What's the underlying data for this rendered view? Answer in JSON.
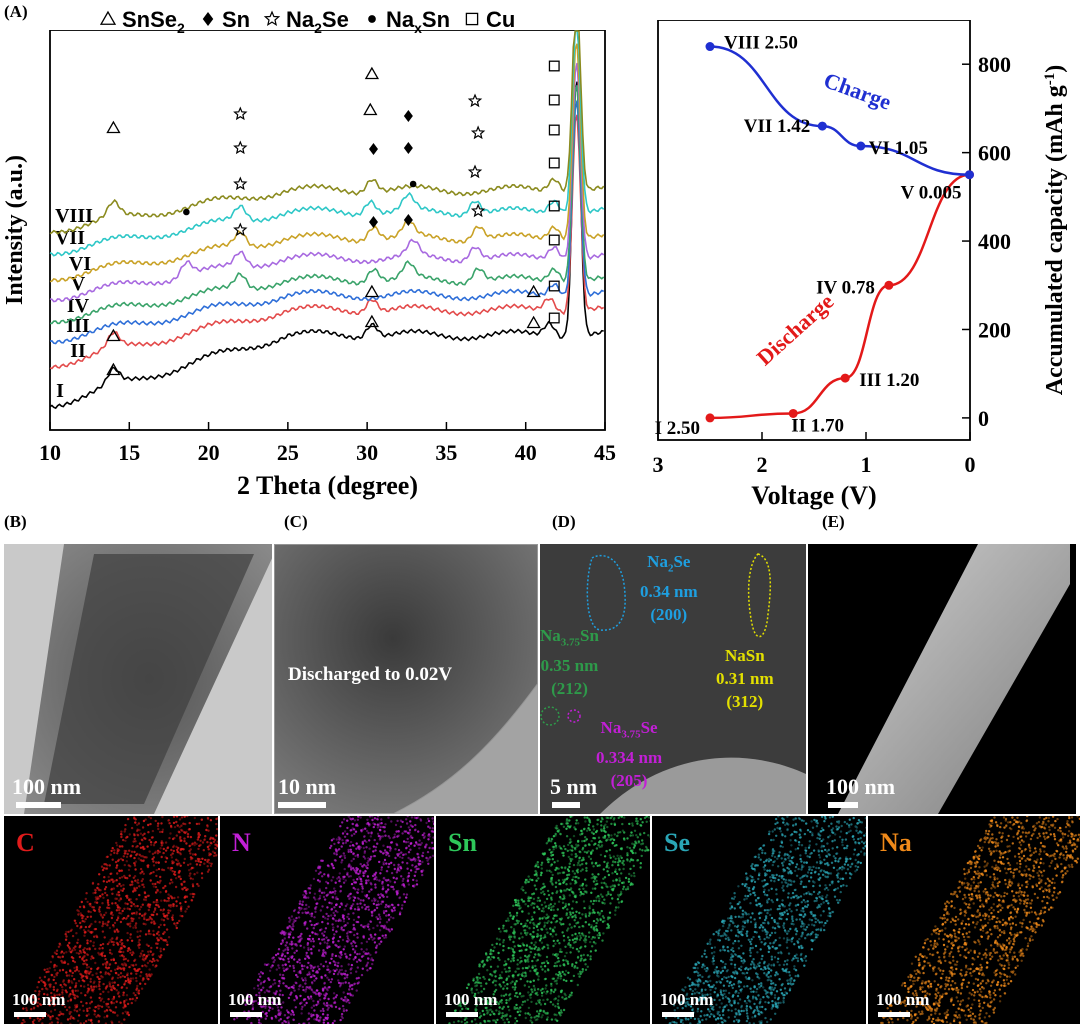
{
  "colors": {
    "I": "#000000",
    "II": "#e34b4b",
    "III": "#e34b4b",
    "IV": "#2f6fd8",
    "V": "#3aa36a",
    "VI": "#a86ae0",
    "VII": "#c9a227",
    "VIII": "#2ec7c7",
    "IX": "#8b8b1f",
    "charge": "#1f2fd1",
    "discharge": "#e31919",
    "C": "#e01b1b",
    "N": "#c21fd6",
    "Sn": "#2ec75a",
    "Se": "#2aa6b6",
    "Na": "#f08a1a",
    "Na2Se": "#1e9fe0",
    "Na375Sn": "#2e9a4a",
    "NaSn": "#e3e000",
    "Na3Se": "#c21fd6"
  },
  "panelA": {
    "label": "(A)",
    "legend": [
      {
        "icon": "triangle-open",
        "text": "SnSe",
        "sub": "2"
      },
      {
        "icon": "diamond-filled",
        "text": "Sn",
        "sub": ""
      },
      {
        "icon": "star-open",
        "text": "Na",
        "sub": "2",
        "text2": "Se"
      },
      {
        "icon": "circle-filled",
        "text": "Na",
        "sub": "x",
        "text2": "Sn"
      },
      {
        "icon": "square-open",
        "text": "Cu",
        "sub": ""
      }
    ]
  },
  "chart_data": [
    {
      "type": "line",
      "xlabel": "2 Theta (degree)",
      "ylabel": "Intensity (a.u.)",
      "xlim": [
        10,
        45
      ],
      "xticks": [
        10,
        15,
        20,
        25,
        30,
        35,
        40,
        45
      ],
      "series": [
        {
          "name": "I",
          "peaks": [
            14,
            30.3,
            41.5,
            43.2
          ]
        },
        {
          "name": "II",
          "peaks": [
            14,
            30.3,
            41.5,
            43.2
          ]
        },
        {
          "name": "III",
          "peaks": [
            41.8,
            43.2
          ]
        },
        {
          "name": "IV",
          "peaks": [
            22,
            30.4,
            32.6,
            37,
            41.8,
            43.2
          ]
        },
        {
          "name": "V",
          "peaks": [
            18.6,
            22,
            32.9,
            36.8,
            41.8,
            43.2
          ]
        },
        {
          "name": "VI",
          "peaks": [
            22,
            30.4,
            32.6,
            37,
            41.8,
            43.2
          ]
        },
        {
          "name": "VII",
          "peaks": [
            22,
            30.2,
            32.6,
            36.8,
            41.8,
            43.2
          ]
        },
        {
          "name": "VIII",
          "peaks": [
            14,
            30.3,
            41.8,
            43.2
          ]
        }
      ]
    },
    {
      "type": "line",
      "xlabel": "Voltage (V)",
      "ylabel": "Accumulated capacity (mAh g",
      "ylabel_sup": "-1",
      "ylabel_close": ")",
      "xlim": [
        3,
        0
      ],
      "ylim": [
        -50,
        900
      ],
      "xticks": [
        3,
        2,
        1,
        0
      ],
      "yticks": [
        0,
        200,
        400,
        600,
        800
      ],
      "series": [
        {
          "name": "Discharge",
          "x": [
            2.5,
            1.7,
            1.2,
            0.78,
            0.005
          ],
          "y": [
            0,
            10,
            90,
            300,
            550
          ]
        },
        {
          "name": "Charge",
          "x": [
            0.005,
            1.05,
            1.42,
            2.5
          ],
          "y": [
            550,
            615,
            660,
            840
          ]
        }
      ],
      "point_labels": [
        {
          "text": "I 2.50",
          "x": 2.5,
          "y": 0
        },
        {
          "text": "II 1.70",
          "x": 1.7,
          "y": 10
        },
        {
          "text": "III 1.20",
          "x": 1.2,
          "y": 90
        },
        {
          "text": "IV 0.78",
          "x": 0.78,
          "y": 300
        },
        {
          "text": "V 0.005",
          "x": 0.005,
          "y": 550
        },
        {
          "text": "VI 1.05",
          "x": 1.05,
          "y": 615
        },
        {
          "text": "VII 1.42",
          "x": 1.42,
          "y": 660
        },
        {
          "text": "VIII 2.50",
          "x": 2.5,
          "y": 840
        }
      ]
    }
  ],
  "panels": {
    "B": {
      "label": "(B)",
      "scale": "100 nm"
    },
    "C": {
      "label": "(C)",
      "scale": "10 nm",
      "caption": "Discharged to 0.02V"
    },
    "D": {
      "label": "(D)",
      "scale": "5 nm",
      "annotations": [
        {
          "key": "Na2Se",
          "line1": "Na",
          "sub": "2",
          "line1b": "Se",
          "line2": "0.34 nm",
          "line3": "(200)"
        },
        {
          "key": "Na375Sn",
          "line1": "Na",
          "sub": "3.75",
          "line1b": "Sn",
          "line2": "0.35 nm",
          "line3": "(212)"
        },
        {
          "key": "NaSn",
          "line1": "NaSn",
          "sub": "",
          "line1b": "",
          "line2": "0.31 nm",
          "line3": "(312)"
        },
        {
          "key": "Na3Se",
          "line1": "Na",
          "sub": "3.75",
          "line1b": "Se",
          "line2": "0.334 nm",
          "line3": "(205)"
        }
      ]
    },
    "E": {
      "label": "(E)",
      "scale": "100 nm"
    }
  },
  "maps": [
    {
      "el": "C",
      "scale": "100 nm"
    },
    {
      "el": "N",
      "scale": "100 nm"
    },
    {
      "el": "Sn",
      "scale": "100 nm"
    },
    {
      "el": "Se",
      "scale": "100 nm"
    },
    {
      "el": "Na",
      "scale": "100 nm"
    }
  ]
}
